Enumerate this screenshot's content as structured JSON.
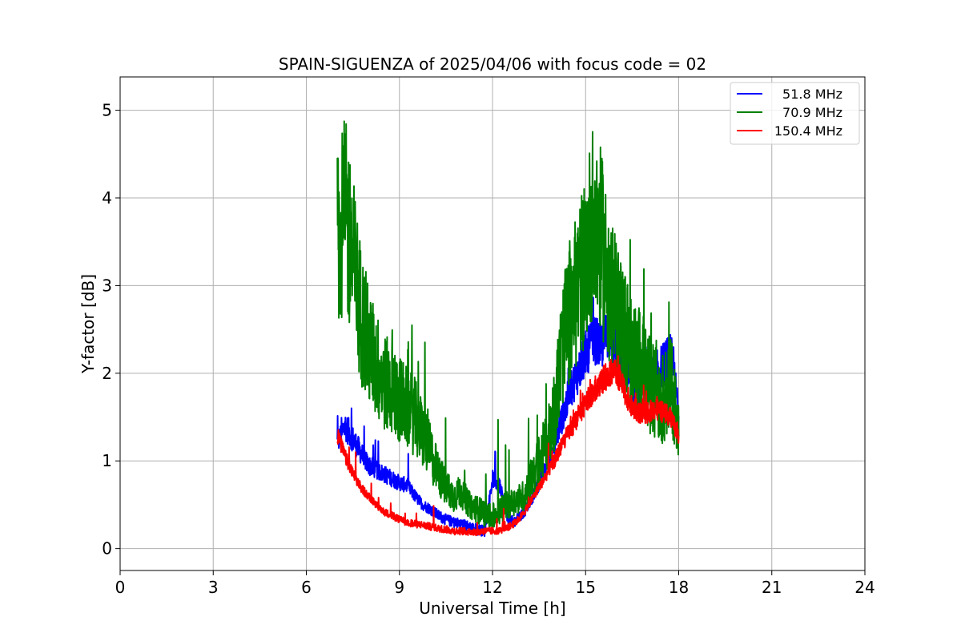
{
  "chart_data": {
    "type": "line",
    "title": "SPAIN-SIGUENZA of 2025/04/06 with focus code = 02",
    "xlabel": "Universal Time [h]",
    "ylabel": "Y-factor [dB]",
    "xlim": [
      0,
      24
    ],
    "ylim": [
      -0.25,
      5.38
    ],
    "xticks": [
      "0",
      "3",
      "6",
      "9",
      "12",
      "15",
      "18",
      "21",
      "24"
    ],
    "yticks": [
      "0",
      "1",
      "2",
      "3",
      "4",
      "5"
    ],
    "grid": true,
    "legend_position": "top-right",
    "x": [
      7.0,
      7.25,
      7.5,
      7.75,
      8.0,
      8.25,
      8.5,
      8.75,
      9.0,
      9.25,
      9.5,
      9.75,
      10.0,
      10.25,
      10.5,
      10.75,
      11.0,
      11.25,
      11.5,
      11.75,
      12.0,
      12.25,
      12.5,
      12.75,
      13.0,
      13.25,
      13.5,
      13.75,
      14.0,
      14.25,
      14.5,
      14.75,
      15.0,
      15.25,
      15.5,
      15.75,
      16.0,
      16.25,
      16.5,
      16.75,
      17.0,
      17.25,
      17.5,
      17.75,
      18.0
    ],
    "series": [
      {
        "name": "51.8 MHz",
        "color": "#0000ff",
        "values": [
          1.2,
          1.4,
          1.25,
          1.1,
          0.95,
          0.9,
          0.85,
          0.8,
          0.75,
          0.72,
          0.6,
          0.5,
          0.45,
          0.38,
          0.33,
          0.3,
          0.28,
          0.25,
          0.22,
          0.2,
          0.8,
          0.7,
          0.3,
          0.32,
          0.4,
          0.55,
          0.75,
          0.95,
          1.2,
          1.5,
          1.8,
          2.0,
          2.2,
          2.4,
          2.3,
          2.5,
          2.2,
          2.0,
          1.9,
          1.8,
          1.9,
          2.0,
          2.1,
          2.2,
          1.6
        ]
      },
      {
        "name": "70.9 MHz",
        "color": "#008000",
        "values": [
          3.5,
          3.8,
          3.3,
          2.7,
          2.3,
          2.1,
          1.9,
          1.8,
          1.7,
          1.6,
          1.5,
          1.3,
          1.1,
          0.85,
          0.7,
          0.6,
          0.65,
          0.5,
          0.45,
          0.4,
          0.35,
          0.45,
          0.5,
          0.55,
          0.6,
          0.8,
          1.0,
          1.2,
          1.6,
          2.3,
          2.7,
          3.0,
          3.3,
          3.8,
          3.5,
          3.0,
          2.7,
          2.5,
          2.2,
          2.1,
          1.9,
          1.8,
          1.7,
          1.9,
          1.4
        ]
      },
      {
        "name": "150.4 MHz",
        "color": "#ff0000",
        "values": [
          1.3,
          1.05,
          0.85,
          0.7,
          0.6,
          0.5,
          0.42,
          0.38,
          0.33,
          0.3,
          0.28,
          0.27,
          0.25,
          0.23,
          0.22,
          0.2,
          0.2,
          0.19,
          0.19,
          0.2,
          0.2,
          0.21,
          0.24,
          0.3,
          0.4,
          0.55,
          0.7,
          0.85,
          1.0,
          1.2,
          1.35,
          1.5,
          1.65,
          1.8,
          1.9,
          2.0,
          2.0,
          1.8,
          1.6,
          1.55,
          1.55,
          1.6,
          1.55,
          1.5,
          1.3
        ]
      }
    ]
  }
}
